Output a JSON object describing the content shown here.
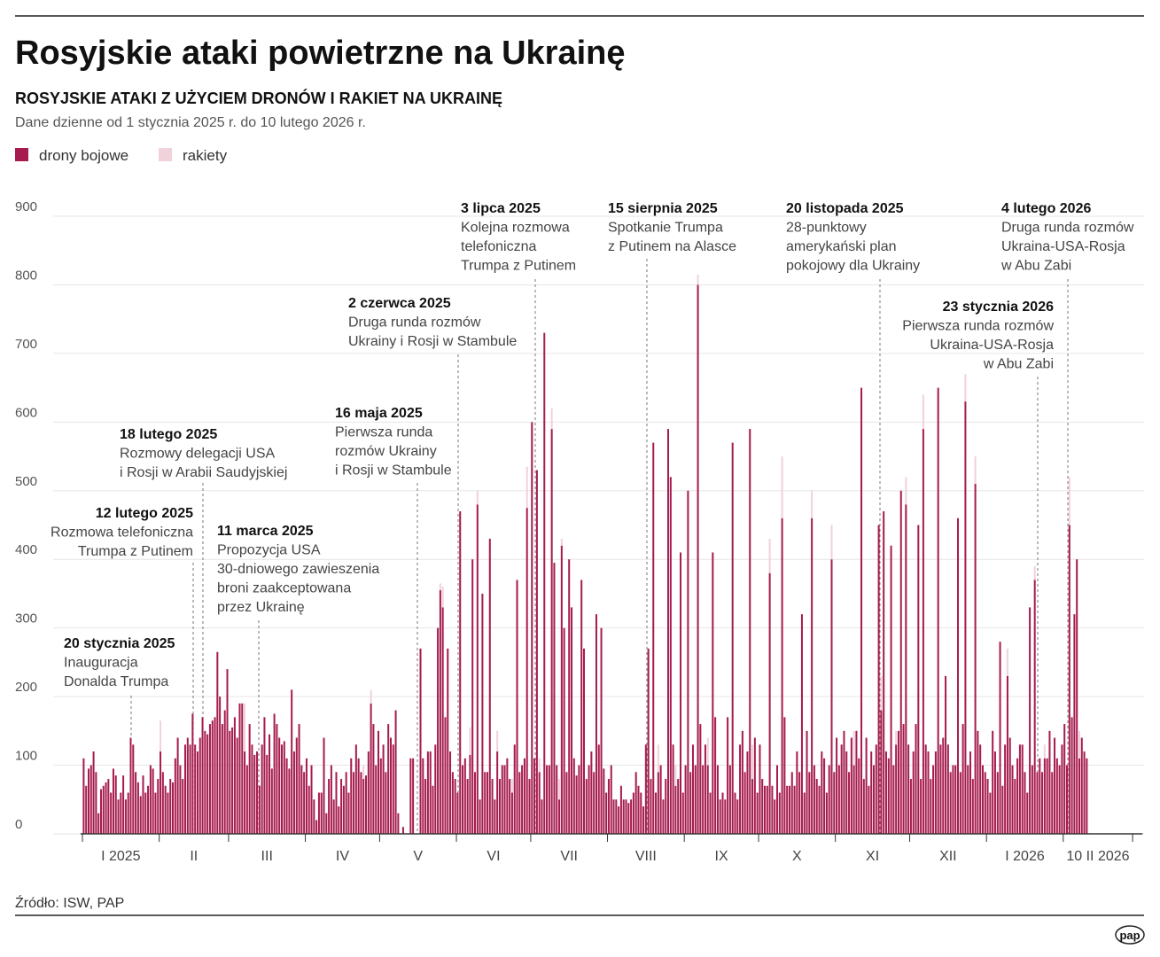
{
  "chart_data": {
    "type": "stacked_bar",
    "title": "Rosyjskie ataki powietrzne na Ukrainę",
    "subtitle": "ROSYJSKIE ATAKI Z UŻYCIEM DRONÓW I RAKIET NA UKRAINĘ",
    "description": "Dane dzienne od 1 stycznia 2025 r. do 10 lutego 2026 r.",
    "source": "Źródło: ISW, PAP",
    "logo": "pap",
    "series": [
      {
        "name": "drony bojowe",
        "color": "#a61c4e",
        "values": [
          110,
          70,
          95,
          100,
          120,
          90,
          30,
          65,
          70,
          75,
          80,
          60,
          95,
          85,
          50,
          60,
          85,
          50,
          60,
          140,
          130,
          90,
          75,
          55,
          85,
          60,
          70,
          100,
          95,
          60,
          80,
          120,
          90,
          70,
          60,
          80,
          75,
          110,
          140,
          100,
          80,
          130,
          140,
          130,
          175,
          130,
          120,
          140,
          170,
          150,
          145,
          160,
          165,
          170,
          265,
          200,
          160,
          180,
          240,
          150,
          155,
          170,
          140,
          190,
          190,
          120,
          100,
          160,
          130,
          115,
          120,
          70,
          130,
          170,
          115,
          145,
          95,
          175,
          160,
          140,
          130,
          135,
          110,
          95,
          210,
          120,
          140,
          160,
          100,
          90,
          110,
          70,
          100,
          50,
          20,
          60,
          60,
          140,
          30,
          80,
          100,
          50,
          90,
          40,
          80,
          70,
          90,
          60,
          110,
          90,
          130,
          110,
          90,
          80,
          85,
          120,
          190,
          160,
          100,
          150,
          110,
          130,
          90,
          160,
          140,
          130,
          180,
          30,
          0,
          10,
          0,
          0,
          110,
          110,
          0,
          0,
          270,
          110,
          80,
          120,
          120,
          70,
          130,
          300,
          355,
          330,
          170,
          270,
          120,
          90,
          80,
          60,
          470,
          100,
          110,
          80,
          115,
          400,
          90,
          480,
          50,
          350,
          90,
          90,
          430,
          80,
          50,
          120,
          80,
          100,
          100,
          110,
          80,
          60,
          130,
          370,
          90,
          100,
          110,
          475,
          80,
          600,
          110,
          530,
          90,
          50,
          730,
          100,
          100,
          590,
          395,
          100,
          50,
          420,
          300,
          90,
          400,
          330,
          110,
          85,
          100,
          370,
          270,
          80,
          100,
          120,
          90,
          320,
          130,
          300,
          95,
          60,
          80,
          100,
          50,
          50,
          40,
          70,
          50,
          50,
          45,
          50,
          60,
          90,
          70,
          60,
          40,
          130,
          270,
          80,
          570,
          60,
          90,
          100,
          50,
          80,
          590,
          520,
          130,
          70,
          80,
          410,
          60,
          100,
          500,
          90,
          130,
          100,
          800,
          160,
          100,
          130,
          100,
          60,
          410,
          170,
          100,
          50,
          60,
          50,
          170,
          100,
          570,
          60,
          50,
          130,
          150,
          90,
          120,
          590,
          80,
          140,
          60,
          130,
          80,
          70,
          70,
          380,
          70,
          50,
          100,
          60,
          460,
          170,
          70,
          70,
          90,
          70,
          120,
          90,
          320,
          60,
          150,
          90,
          460,
          100,
          80,
          70,
          120,
          110,
          60,
          100,
          400,
          90,
          140,
          100,
          130,
          150,
          120,
          90,
          140,
          100,
          150,
          110,
          650,
          80,
          140,
          70,
          120,
          100,
          130,
          450,
          180,
          470,
          120,
          110,
          420,
          100,
          130,
          150,
          500,
          160,
          480,
          130,
          80,
          120,
          160,
          450,
          80,
          590,
          130,
          120,
          80,
          100,
          120,
          650,
          130,
          140,
          230,
          130,
          90,
          100,
          100,
          460,
          90,
          160,
          630,
          100,
          120,
          80,
          510,
          150,
          130,
          100,
          90,
          80,
          60,
          150,
          120,
          90,
          280,
          70,
          130,
          230,
          140,
          100,
          80,
          110,
          130,
          130,
          90,
          60,
          330,
          100,
          370,
          90,
          110,
          90,
          110,
          110,
          150,
          90,
          140,
          110,
          100,
          130,
          160,
          100,
          450,
          170,
          320,
          400,
          110,
          140,
          120,
          110
        ]
      },
      {
        "name": "rakiety",
        "color": "#f0d2db",
        "values": [
          0,
          0,
          0,
          0,
          0,
          0,
          0,
          0,
          0,
          0,
          0,
          0,
          0,
          0,
          0,
          0,
          0,
          0,
          0,
          0,
          0,
          0,
          0,
          0,
          0,
          0,
          0,
          0,
          0,
          0,
          0,
          45,
          0,
          0,
          0,
          0,
          0,
          0,
          0,
          0,
          0,
          0,
          0,
          0,
          0,
          0,
          0,
          0,
          0,
          0,
          0,
          0,
          0,
          0,
          0,
          0,
          0,
          0,
          0,
          0,
          0,
          0,
          0,
          0,
          0,
          70,
          0,
          0,
          0,
          0,
          0,
          0,
          0,
          0,
          0,
          0,
          0,
          0,
          0,
          0,
          0,
          0,
          0,
          0,
          0,
          0,
          0,
          0,
          0,
          0,
          0,
          0,
          0,
          0,
          0,
          0,
          0,
          0,
          0,
          0,
          0,
          0,
          0,
          0,
          0,
          0,
          0,
          0,
          0,
          0,
          0,
          0,
          0,
          20,
          0,
          0,
          20,
          0,
          0,
          0,
          0,
          0,
          0,
          0,
          0,
          0,
          0,
          0,
          0,
          0,
          0,
          0,
          0,
          0,
          0,
          0,
          0,
          0,
          0,
          0,
          0,
          0,
          0,
          0,
          10,
          30,
          0,
          0,
          0,
          0,
          0,
          0,
          0,
          0,
          0,
          0,
          40,
          0,
          0,
          20,
          0,
          0,
          0,
          0,
          0,
          0,
          0,
          30,
          0,
          0,
          0,
          0,
          0,
          20,
          0,
          0,
          0,
          0,
          0,
          60,
          0,
          0,
          0,
          0,
          20,
          0,
          0,
          0,
          0,
          30,
          0,
          0,
          30,
          10,
          0,
          0,
          0,
          0,
          0,
          0,
          0,
          0,
          0,
          0,
          0,
          0,
          0,
          0,
          0,
          0,
          0,
          0,
          0,
          0,
          0,
          0,
          0,
          0,
          0,
          0,
          0,
          0,
          0,
          0,
          0,
          0,
          0,
          0,
          0,
          0,
          0,
          0,
          40,
          0,
          0,
          0,
          0,
          0,
          0,
          30,
          0,
          0,
          0,
          0,
          0,
          0,
          0,
          0,
          15,
          0,
          0,
          0,
          40,
          0,
          0,
          0,
          0,
          0,
          0,
          0,
          0,
          0,
          0,
          0,
          0,
          0,
          0,
          0,
          0,
          0,
          50,
          0,
          0,
          0,
          0,
          0,
          0,
          50,
          0,
          0,
          0,
          0,
          90,
          0,
          0,
          0,
          0,
          0,
          0,
          0,
          0,
          0,
          0,
          0,
          40,
          0,
          0,
          0,
          0,
          0,
          0,
          0,
          50,
          0,
          0,
          0,
          0,
          0,
          0,
          0,
          0,
          50,
          0,
          0,
          0,
          0,
          0,
          0,
          0,
          0,
          0,
          0,
          50,
          0,
          0,
          0,
          0,
          0,
          20,
          0,
          0,
          0,
          40,
          0,
          0,
          0,
          0,
          0,
          0,
          50,
          0,
          0,
          0,
          0,
          0,
          0,
          0,
          0,
          0,
          0,
          0,
          0,
          0,
          0,
          0,
          0,
          40,
          0,
          0,
          0,
          40,
          0,
          0,
          0,
          0,
          0,
          0,
          0,
          0,
          0,
          0,
          0,
          0,
          40,
          0,
          0,
          0,
          0,
          0,
          0,
          0,
          0,
          0,
          0,
          20,
          0,
          0,
          0,
          20,
          0,
          0,
          0,
          0,
          0,
          0,
          0,
          0,
          0,
          70,
          0,
          0,
          0,
          40,
          0,
          0,
          0
        ]
      }
    ],
    "ylim": [
      0,
      900
    ],
    "yticks": [
      0,
      100,
      200,
      300,
      400,
      500,
      600,
      700,
      800,
      900
    ],
    "grid": true,
    "xlim": [
      0,
      428
    ],
    "xticks": [
      0,
      31,
      59,
      90,
      120,
      151,
      181,
      212,
      243,
      273,
      304,
      334,
      365,
      396,
      424
    ],
    "xtick_labels": [
      {
        "value": 15.5,
        "label": "I 2025"
      },
      {
        "value": 45,
        "label": "II"
      },
      {
        "value": 74.5,
        "label": "III"
      },
      {
        "value": 105,
        "label": "IV"
      },
      {
        "value": 135.5,
        "label": "V"
      },
      {
        "value": 166,
        "label": "VI"
      },
      {
        "value": 196.5,
        "label": "VII"
      },
      {
        "value": 227.5,
        "label": "VIII"
      },
      {
        "value": 258,
        "label": "IX"
      },
      {
        "value": 288.5,
        "label": "X"
      },
      {
        "value": 319,
        "label": "XI"
      },
      {
        "value": 349.5,
        "label": "XII"
      },
      {
        "value": 380.5,
        "label": "I 2026"
      },
      {
        "value": 410,
        "label": "10 II 2026"
      }
    ],
    "annotations": [
      {
        "date": "20 stycznia 2025",
        "lines": [
          "Inauguracja",
          "Donalda Trumpa"
        ]
      },
      {
        "date": "12 lutego 2025",
        "lines": [
          "Rozmowa telefoniczna",
          "Trumpa z Putinem"
        ]
      },
      {
        "date": "18 lutego 2025",
        "lines": [
          "Rozmowy delegacji USA",
          "i Rosji w Arabii Saudyjskiej"
        ]
      },
      {
        "date": "11 marca 2025",
        "lines": [
          "Propozycja USA",
          "30-dniowego zawieszenia",
          "broni zaakceptowana",
          "przez Ukrainę"
        ]
      },
      {
        "date": "16 maja 2025",
        "lines": [
          "Pierwsza runda",
          "rozmów Ukrainy",
          "i Rosji w Stambule"
        ]
      },
      {
        "date": "2 czerwca 2025",
        "lines": [
          "Druga runda rozmów",
          "Ukrainy i Rosji w Stambule"
        ]
      },
      {
        "date": "3 lipca 2025",
        "lines": [
          "Kolejna rozmowa",
          "telefoniczna",
          "Trumpa z Putinem"
        ]
      },
      {
        "date": "15 sierpnia 2025",
        "lines": [
          "Spotkanie Trumpa",
          "z Putinem na Alasce"
        ]
      },
      {
        "date": "20 listopada 2025",
        "lines": [
          "28-punktowy",
          "amerykański plan",
          "pokojowy dla Ukrainy"
        ]
      },
      {
        "date": "23 stycznia 2026",
        "lines": [
          "Pierwsza runda rozmów",
          "Ukraina-USA-Rosja",
          "w Abu Zabi"
        ]
      },
      {
        "date": "4 lutego 2026",
        "lines": [
          "Druga runda rozmów",
          "Ukraina-USA-Rosja",
          "w Abu Zabi"
        ]
      }
    ]
  }
}
